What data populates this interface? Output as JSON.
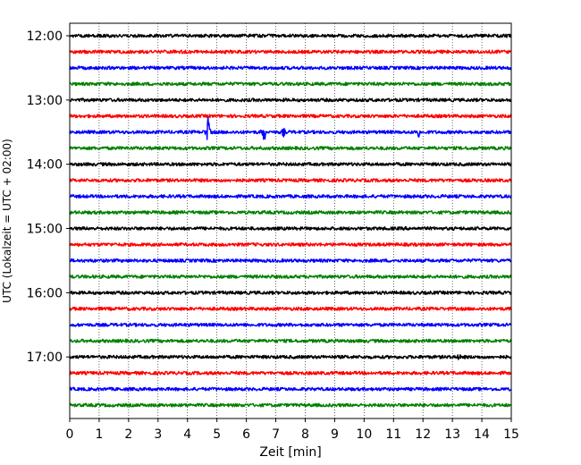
{
  "chart_data": {
    "type": "line",
    "xlabel": "Zeit  [min]",
    "ylabel": "UTC (Lokalzeit = UTC + 02:00)",
    "xlim": [
      0,
      15
    ],
    "x_ticks": [
      0,
      1,
      2,
      3,
      4,
      5,
      6,
      7,
      8,
      9,
      10,
      11,
      12,
      13,
      14,
      15
    ],
    "y_tick_labels": [
      "12:00",
      "13:00",
      "14:00",
      "15:00",
      "16:00",
      "17:00"
    ],
    "grid": "vertical dotted",
    "trace_colors": [
      "#000000",
      "#ff0000",
      "#0000ff",
      "#008000"
    ],
    "traces": [
      {
        "start": "12:00"
      },
      {
        "start": "12:15"
      },
      {
        "start": "12:30"
      },
      {
        "start": "12:45"
      },
      {
        "start": "13:00"
      },
      {
        "start": "13:15"
      },
      {
        "start": "13:30"
      },
      {
        "start": "13:45"
      },
      {
        "start": "14:00"
      },
      {
        "start": "14:15"
      },
      {
        "start": "14:30"
      },
      {
        "start": "14:45"
      },
      {
        "start": "15:00"
      },
      {
        "start": "15:15"
      },
      {
        "start": "15:30"
      },
      {
        "start": "15:45"
      },
      {
        "start": "16:00"
      },
      {
        "start": "16:15"
      },
      {
        "start": "16:30"
      },
      {
        "start": "16:45"
      },
      {
        "start": "17:00"
      },
      {
        "start": "17:15"
      },
      {
        "start": "17:30"
      },
      {
        "start": "17:45"
      }
    ],
    "events": [
      {
        "trace": 6,
        "x": 4.7,
        "amplitude": 1.0
      },
      {
        "trace": 6,
        "x": 6.6,
        "amplitude": 0.75
      },
      {
        "trace": 6,
        "x": 7.25,
        "amplitude": 0.3
      },
      {
        "trace": 6,
        "x": 11.85,
        "amplitude": 0.5
      },
      {
        "trace": 20,
        "x": 13.2,
        "amplitude": 0.2
      }
    ]
  }
}
